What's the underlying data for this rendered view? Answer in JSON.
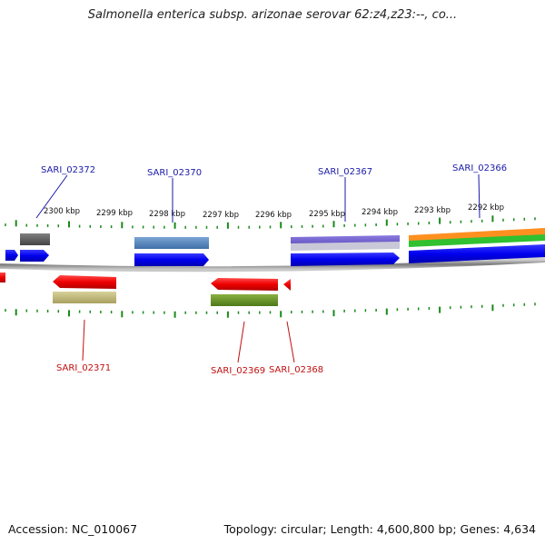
{
  "title": "Salmonella enterica subsp. arizonae serovar 62:z4,z23:--, co...",
  "footer": {
    "accession": "Accession: NC_010067",
    "summary": "Topology: circular; Length: 4,600,800 bp; Genes: 4,634"
  },
  "scale": {
    "ticks": [
      "2300 kbp",
      "2299 kbp",
      "2298 kbp",
      "2297 kbp",
      "2296 kbp",
      "2295 kbp",
      "2294 kbp",
      "2293 kbp",
      "2292 kbp"
    ]
  },
  "genes": {
    "forward": [
      "SARI_02372",
      "SARI_02370",
      "SARI_02367",
      "SARI_02366"
    ],
    "reverse": [
      "SARI_02371",
      "SARI_02369",
      "SARI_02368"
    ]
  },
  "colors": {
    "forward_label": "#1a1aa8",
    "reverse_label": "#c01010",
    "forward_gene": "#0000ee",
    "reverse_gene": "#ee0000",
    "tick": "#1a8a1a",
    "backbone": "#8a8a8a"
  }
}
